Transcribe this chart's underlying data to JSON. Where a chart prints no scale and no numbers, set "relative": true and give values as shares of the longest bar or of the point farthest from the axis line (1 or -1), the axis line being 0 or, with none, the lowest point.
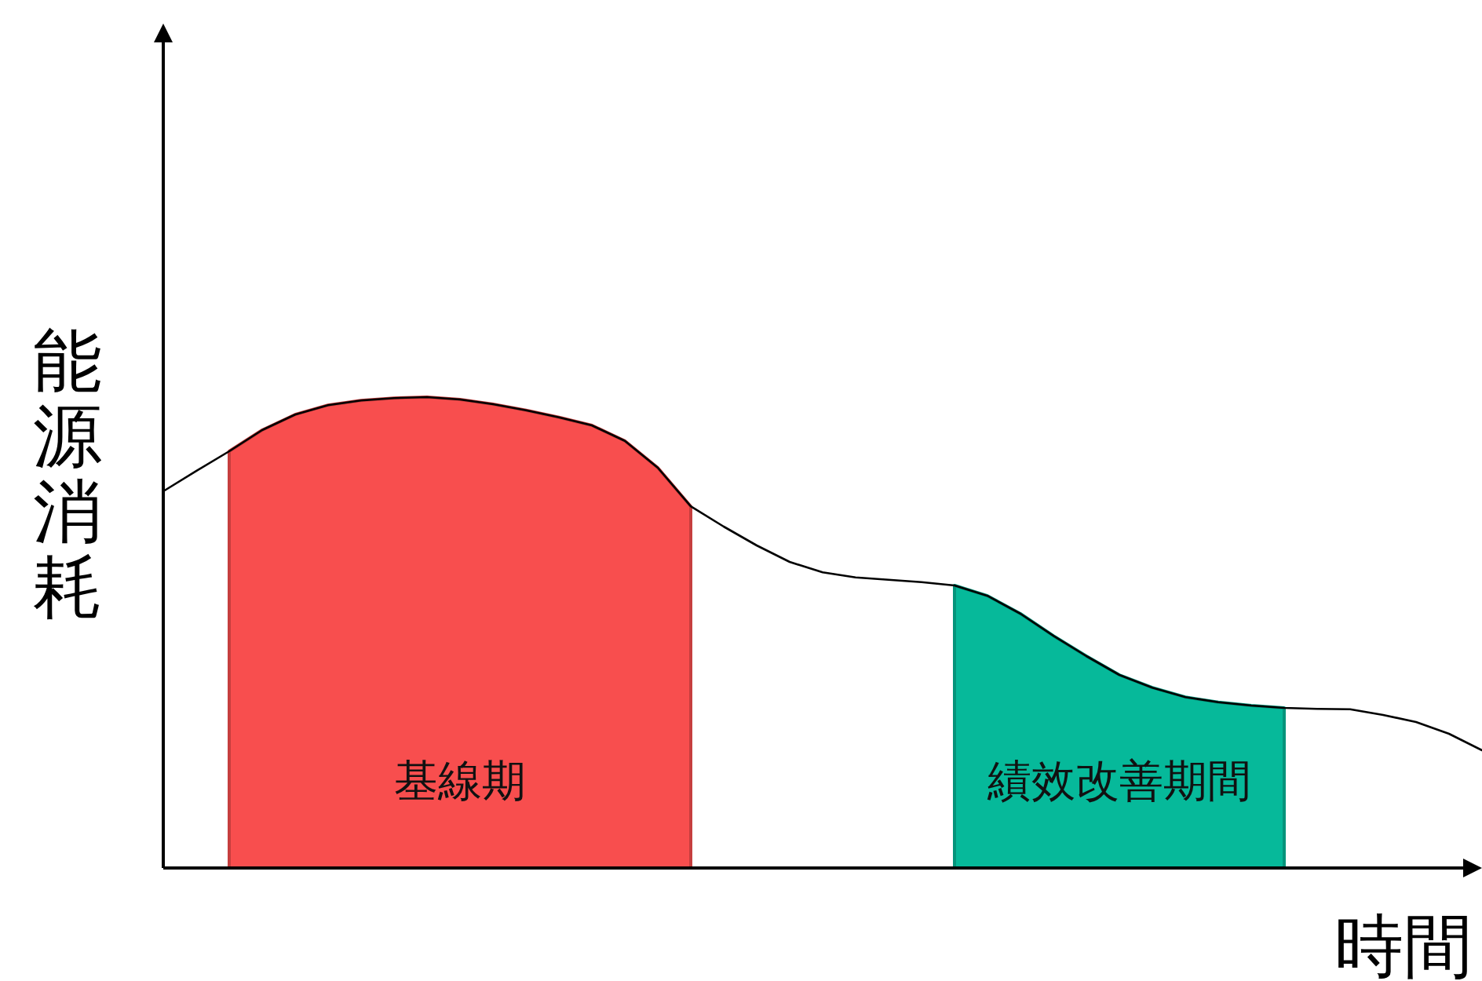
{
  "chart_data": {
    "type": "line",
    "relative": true,
    "xlabel": "時間",
    "ylabel": "能源消耗",
    "legend": false,
    "categories": [
      null,
      null,
      null,
      null,
      null,
      null,
      null,
      null,
      null,
      null,
      null,
      null,
      null,
      null,
      null,
      null,
      null,
      null,
      null,
      null,
      null,
      null,
      null,
      null,
      null,
      null,
      null,
      null,
      null,
      null,
      null,
      null,
      null,
      null,
      null,
      null,
      null,
      null,
      null,
      null,
      null
    ],
    "series": [
      {
        "type": "line",
        "color": "#000000",
        "values": [
          0.8,
          0.843,
          0.885,
          0.93,
          0.963,
          0.983,
          0.993,
          0.998,
          1.0,
          0.995,
          0.985,
          0.972,
          0.957,
          0.94,
          0.907,
          0.85,
          0.768,
          0.725,
          0.685,
          0.65,
          0.628,
          0.617,
          0.612,
          0.607,
          0.6,
          0.578,
          0.54,
          0.493,
          0.45,
          0.41,
          0.383,
          0.363,
          0.352,
          0.345,
          0.34,
          0.338,
          0.337,
          0.325,
          0.31,
          0.285,
          0.25
        ]
      },
      {
        "type": "area",
        "name": "基線期",
        "color": "#f84e4e",
        "values": [
          null,
          null,
          0.885,
          0.93,
          0.963,
          0.983,
          0.993,
          0.998,
          1.0,
          0.995,
          0.985,
          0.972,
          0.957,
          0.94,
          0.907,
          0.85,
          0.768,
          null,
          null,
          null,
          null,
          null,
          null,
          null,
          null,
          null,
          null,
          null,
          null,
          null,
          null,
          null,
          null,
          null,
          null,
          null,
          null,
          null,
          null,
          null,
          null
        ]
      },
      {
        "type": "area",
        "name": "績效改善期間",
        "color": "#06b99a",
        "values": [
          null,
          null,
          null,
          null,
          null,
          null,
          null,
          null,
          null,
          null,
          null,
          null,
          null,
          null,
          null,
          null,
          null,
          null,
          null,
          null,
          null,
          null,
          null,
          null,
          0.6,
          0.578,
          0.54,
          0.493,
          0.45,
          0.41,
          0.383,
          0.363,
          0.352,
          0.345,
          0.34,
          null,
          null,
          null,
          null,
          null,
          null
        ]
      }
    ]
  }
}
